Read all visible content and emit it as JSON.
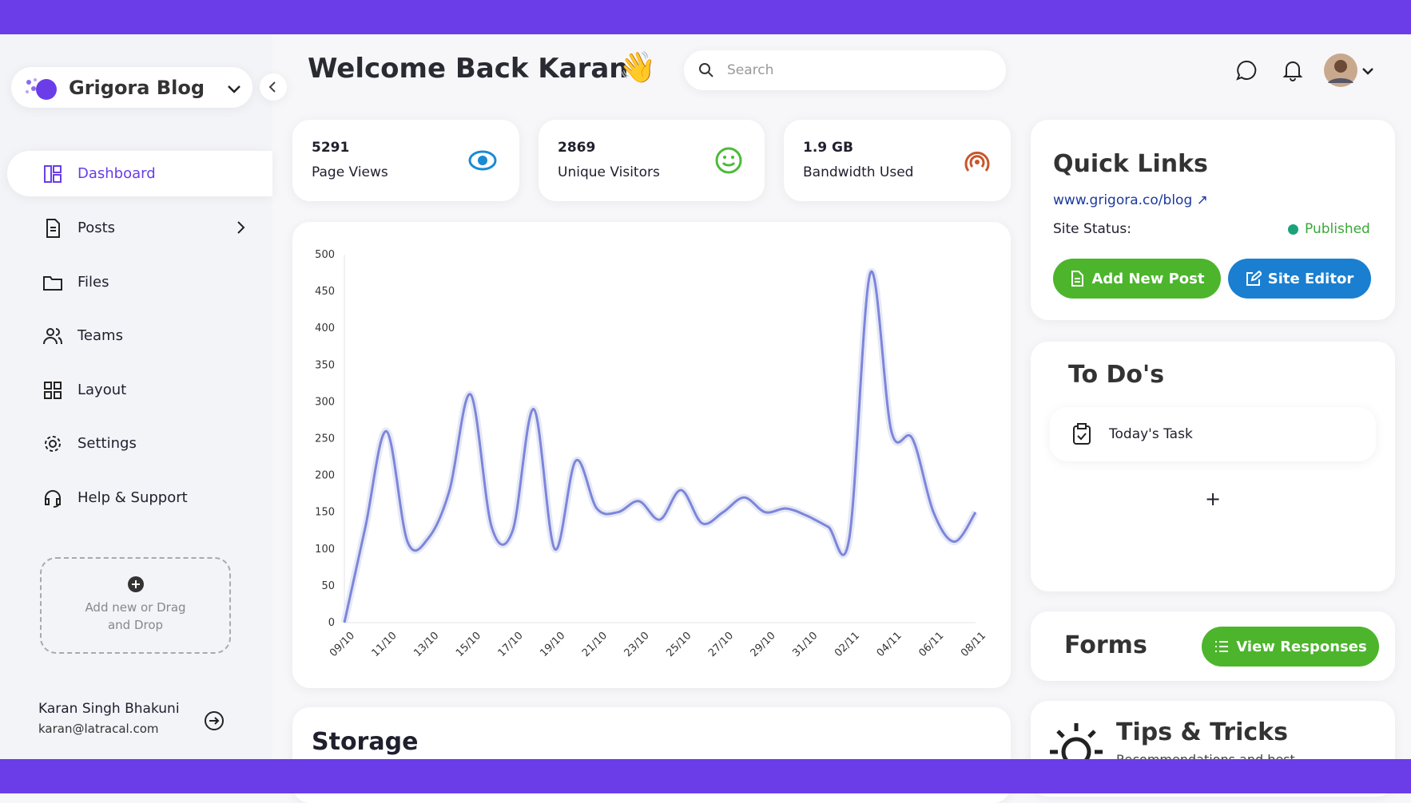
{
  "brand": {
    "name": "Grigora Blog"
  },
  "header": {
    "title": "Welcome Back Karan",
    "emoji": "👋",
    "search_placeholder": "Search"
  },
  "sidebar": {
    "nav": [
      "Dashboard",
      "Posts",
      "Files",
      "Teams",
      "Layout",
      "Settings",
      "Help & Support"
    ],
    "add_box": "Add new or Drag and Drop",
    "user": {
      "name": "Karan Singh Bhakuni",
      "email": "karan@latracal.com"
    }
  },
  "stats": [
    {
      "value": 5291,
      "label": "Page Views"
    },
    {
      "value": 2869,
      "label": "Unique Visitors"
    },
    {
      "value": "1.9 GB",
      "label": "Bandwidth Used"
    }
  ],
  "chart_data": {
    "type": "line",
    "categories": [
      "09/10",
      null,
      "11/10",
      null,
      "13/10",
      null,
      "15/10",
      null,
      "17/10",
      null,
      "19/10",
      null,
      "21/10",
      null,
      "23/10",
      null,
      "25/10",
      null,
      "27/10",
      null,
      "29/10",
      null,
      "31/10",
      null,
      "02/11",
      null,
      "04/11",
      null,
      "06/11",
      null,
      "08/11"
    ],
    "series": [
      {
        "name": "Page Views",
        "color": "#7c86da",
        "values": [
          0,
          130,
          260,
          110,
          115,
          180,
          310,
          130,
          125,
          290,
          100,
          220,
          155,
          150,
          165,
          140,
          180,
          135,
          150,
          170,
          150,
          155,
          145,
          130,
          115,
          475,
          260,
          250,
          150,
          110,
          150
        ]
      }
    ],
    "ylim": [
      0,
      500
    ],
    "yticks": [
      0,
      50,
      100,
      150,
      200,
      250,
      300,
      350,
      400,
      450,
      500
    ]
  },
  "storage": {
    "title": "Storage"
  },
  "quick_links": {
    "title": "Quick Links",
    "url": "www.grigora.co/blog",
    "status_label": "Site Status:",
    "status": "Published",
    "buttons": [
      "Add New Post",
      "Site Editor"
    ]
  },
  "todos": {
    "title": "To Do's",
    "items": [
      "Today's Task"
    ],
    "add": "+"
  },
  "forms": {
    "title": "Forms",
    "button": "View Responses"
  },
  "tips": {
    "title": "Tips & Tricks",
    "subtitle": "Recommendations and best"
  }
}
